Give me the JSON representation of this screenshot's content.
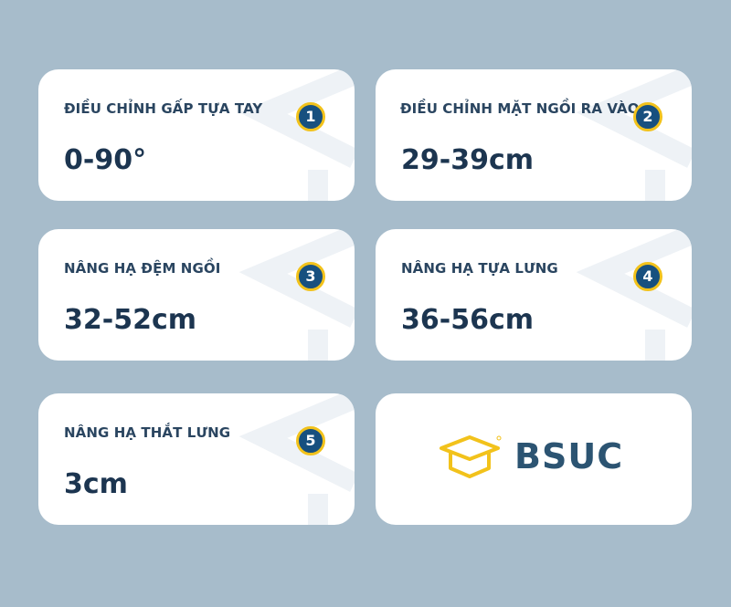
{
  "cards": [
    {
      "title": "ĐIỀU CHỈNH GẤP TỰA TAY",
      "value": "0-90°",
      "badge": "1"
    },
    {
      "title": "ĐIỀU CHỈNH MẶT NGỒI RA VÀO",
      "value": "29-39cm",
      "badge": "2"
    },
    {
      "title": "NÂNG HẠ ĐỆM NGỒI",
      "value": "32-52cm",
      "badge": "3"
    },
    {
      "title": "NÂNG HẠ TỰA LƯNG",
      "value": "36-56cm",
      "badge": "4"
    },
    {
      "title": "NÂNG HẠ THẮT LƯNG",
      "value": "3cm",
      "badge": "5"
    }
  ],
  "logo": {
    "text": "BSUC",
    "icon": "graduation-cap-icon",
    "color": "#f2c21b",
    "text_color": "#2c5472"
  },
  "colors": {
    "background": "#a7bccb",
    "badge": "#17507f",
    "badge_border": "#f2c21b",
    "text": "#1c3550"
  }
}
